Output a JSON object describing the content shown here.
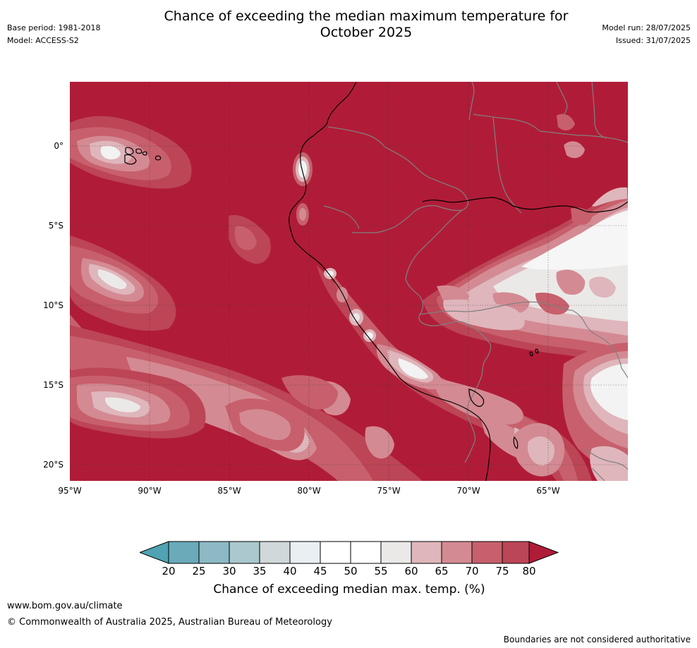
{
  "header": {
    "title_line1": "Chance of exceeding the median maximum temperature for",
    "title_line2": "October 2025",
    "base_period": "Base period: 1981-2018",
    "model": "Model: ACCESS-S2",
    "model_run": "Model run: 28/07/2025",
    "issued": "Issued: 31/07/2025"
  },
  "map": {
    "lat_labels": [
      "0°",
      "5°S",
      "10°S",
      "15°S",
      "20°S"
    ],
    "lon_labels": [
      "95°W",
      "90°W",
      "85°W",
      "80°W",
      "75°W",
      "70°W",
      "65°W"
    ],
    "colors": {
      "background_class": "#b01c38",
      "coast": "#000000",
      "borders": "#808080",
      "grid": "#333333"
    }
  },
  "colorbar": {
    "ticks": [
      "20",
      "25",
      "30",
      "35",
      "40",
      "45",
      "50",
      "55",
      "60",
      "65",
      "70",
      "75",
      "80"
    ],
    "label": "Chance of exceeding median max. temp. (%)",
    "colors": [
      "#4fa3b3",
      "#6aaab9",
      "#8cb9c4",
      "#aac8cd",
      "#d0d8da",
      "#e9eff2",
      "#ffffff",
      "#ffffff",
      "#ebe9e8",
      "#dfb6bb",
      "#d48a93",
      "#c7606c",
      "#bc4556",
      "#b01c38"
    ]
  },
  "footer": {
    "url": "www.bom.gov.au/climate",
    "copyright": "© Commonwealth of Australia 2025, Australian Bureau of Meteorology",
    "disclaimer": "Boundaries are not considered authoritative"
  }
}
